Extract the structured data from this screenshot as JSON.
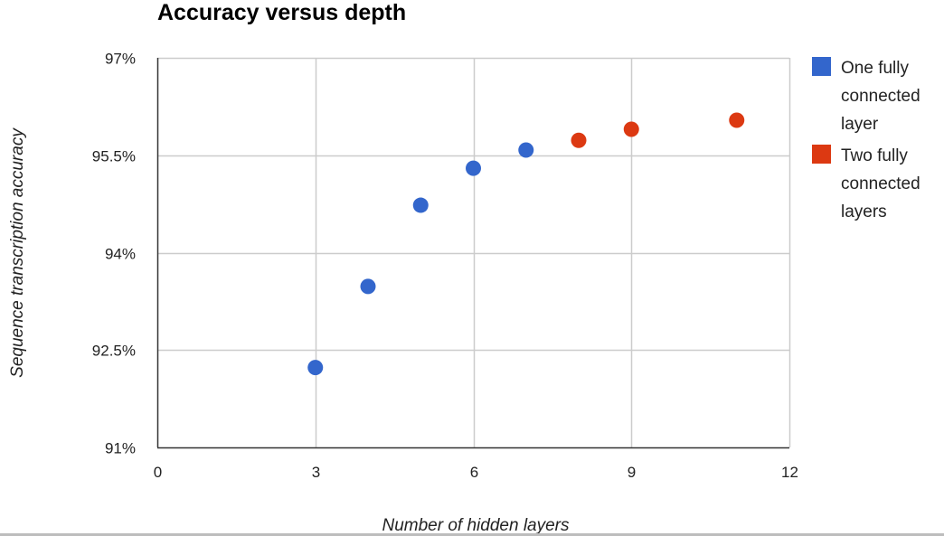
{
  "chart_data": {
    "type": "scatter",
    "title": "Accuracy versus depth",
    "xlabel": "Number of hidden layers",
    "ylabel": "Sequence transcription accuracy",
    "xlim": [
      0,
      12
    ],
    "ylim": [
      91,
      97
    ],
    "x_ticks": [
      {
        "value": 0,
        "label": "0"
      },
      {
        "value": 3,
        "label": "3"
      },
      {
        "value": 6,
        "label": "6"
      },
      {
        "value": 9,
        "label": "9"
      },
      {
        "value": 12,
        "label": "12"
      }
    ],
    "y_ticks": [
      {
        "value": 91,
        "label": "91%"
      },
      {
        "value": 92.5,
        "label": "92.5%"
      },
      {
        "value": 94,
        "label": "94%"
      },
      {
        "value": 95.5,
        "label": "95.5%"
      },
      {
        "value": 97,
        "label": "97%"
      }
    ],
    "grid": true,
    "legend_position": "right",
    "series": [
      {
        "name": "One fully connected layer",
        "legend_lines": [
          "One fully",
          "connected",
          "layer"
        ],
        "color": "#3366cc",
        "points": [
          {
            "x": 3,
            "y": 92.23
          },
          {
            "x": 4,
            "y": 93.48
          },
          {
            "x": 5,
            "y": 94.73
          },
          {
            "x": 6,
            "y": 95.3
          },
          {
            "x": 7,
            "y": 95.58
          }
        ]
      },
      {
        "name": "Two fully connected layers",
        "legend_lines": [
          "Two fully",
          "connected",
          "layers"
        ],
        "color": "#dc3912",
        "points": [
          {
            "x": 8,
            "y": 95.73
          },
          {
            "x": 9,
            "y": 95.9
          },
          {
            "x": 11,
            "y": 96.04
          }
        ]
      }
    ]
  }
}
